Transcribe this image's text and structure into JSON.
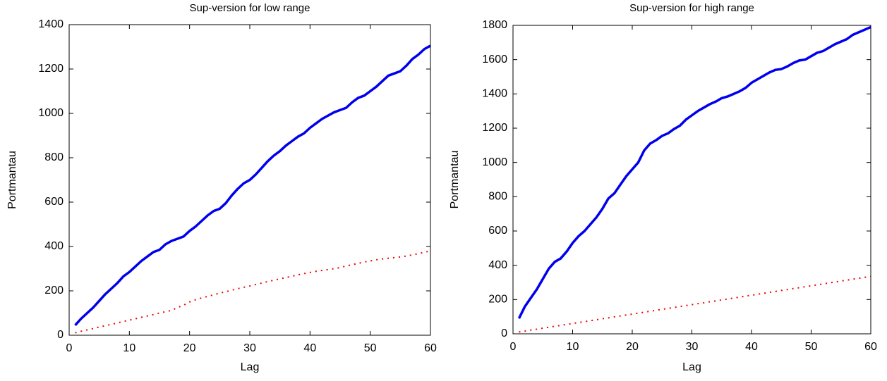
{
  "chart_data": [
    {
      "type": "line",
      "title": "Sup-version for low range",
      "x_label": "Lag",
      "y_label": "Portmantau",
      "x": [
        1,
        2,
        3,
        4,
        5,
        6,
        7,
        8,
        9,
        10,
        11,
        12,
        13,
        14,
        15,
        16,
        17,
        18,
        19,
        20,
        21,
        22,
        23,
        24,
        25,
        26,
        27,
        28,
        29,
        30,
        31,
        32,
        33,
        34,
        35,
        36,
        37,
        38,
        39,
        40,
        41,
        42,
        43,
        44,
        45,
        46,
        47,
        48,
        49,
        50,
        51,
        52,
        53,
        54,
        55,
        56,
        57,
        58,
        59,
        60
      ],
      "series": [
        {
          "color": "#0000ee",
          "style": "solid",
          "values": [
            45,
            75,
            100,
            125,
            155,
            185,
            210,
            235,
            265,
            285,
            310,
            335,
            355,
            375,
            385,
            410,
            425,
            435,
            445,
            470,
            490,
            515,
            540,
            560,
            570,
            595,
            630,
            660,
            685,
            700,
            725,
            755,
            785,
            810,
            830,
            855,
            875,
            895,
            910,
            935,
            955,
            975,
            990,
            1005,
            1015,
            1025,
            1050,
            1070,
            1080,
            1100,
            1120,
            1145,
            1170,
            1180,
            1190,
            1215,
            1245,
            1265,
            1290,
            1305
          ]
        },
        {
          "color": "#ee0000",
          "style": "dotted",
          "values": [
            11,
            18,
            24,
            30,
            37,
            43,
            49,
            55,
            62,
            68,
            74,
            81,
            87,
            93,
            100,
            106,
            112,
            125,
            135,
            150,
            160,
            168,
            175,
            182,
            190,
            196,
            203,
            210,
            216,
            222,
            229,
            235,
            242,
            248,
            254,
            260,
            266,
            272,
            278,
            283,
            288,
            292,
            296,
            300,
            305,
            312,
            318,
            324,
            330,
            335,
            340,
            344,
            347,
            350,
            353,
            357,
            362,
            368,
            374,
            380
          ]
        }
      ],
      "xlim": [
        0,
        60
      ],
      "xticks": [
        0,
        10,
        20,
        30,
        40,
        50,
        60
      ],
      "ylim": [
        0,
        1400
      ],
      "yticks": [
        0,
        200,
        400,
        600,
        800,
        1000,
        1200,
        1400
      ]
    },
    {
      "type": "line",
      "title": "Sup-version for high range",
      "x_label": "Lag",
      "y_label": "Portmantau",
      "x": [
        1,
        2,
        3,
        4,
        5,
        6,
        7,
        8,
        9,
        10,
        11,
        12,
        13,
        14,
        15,
        16,
        17,
        18,
        19,
        20,
        21,
        22,
        23,
        24,
        25,
        26,
        27,
        28,
        29,
        30,
        31,
        32,
        33,
        34,
        35,
        36,
        37,
        38,
        39,
        40,
        41,
        42,
        43,
        44,
        45,
        46,
        47,
        48,
        49,
        50,
        51,
        52,
        53,
        54,
        55,
        56,
        57,
        58,
        59,
        60
      ],
      "series": [
        {
          "color": "#0000ee",
          "style": "solid",
          "values": [
            90,
            160,
            210,
            260,
            320,
            380,
            420,
            440,
            480,
            530,
            570,
            600,
            640,
            680,
            730,
            790,
            820,
            870,
            920,
            960,
            1000,
            1070,
            1110,
            1130,
            1155,
            1170,
            1195,
            1215,
            1250,
            1275,
            1300,
            1320,
            1340,
            1355,
            1375,
            1385,
            1400,
            1415,
            1435,
            1465,
            1485,
            1505,
            1525,
            1540,
            1545,
            1560,
            1580,
            1595,
            1600,
            1620,
            1640,
            1650,
            1670,
            1690,
            1705,
            1720,
            1745,
            1760,
            1775,
            1790
          ]
        },
        {
          "color": "#ee0000",
          "style": "dotted",
          "values": [
            11,
            16,
            22,
            27,
            33,
            38,
            44,
            49,
            55,
            60,
            66,
            71,
            77,
            82,
            88,
            93,
            99,
            104,
            110,
            115,
            121,
            126,
            132,
            137,
            143,
            148,
            154,
            159,
            165,
            170,
            176,
            181,
            187,
            192,
            198,
            203,
            209,
            214,
            220,
            225,
            231,
            236,
            242,
            247,
            253,
            258,
            264,
            269,
            275,
            280,
            286,
            291,
            297,
            302,
            308,
            313,
            319,
            324,
            330,
            335
          ]
        }
      ],
      "xlim": [
        0,
        60
      ],
      "xticks": [
        0,
        10,
        20,
        30,
        40,
        50,
        60
      ],
      "ylim": [
        0,
        1800
      ],
      "yticks": [
        0,
        200,
        400,
        600,
        800,
        1000,
        1200,
        1400,
        1600,
        1800
      ]
    }
  ]
}
